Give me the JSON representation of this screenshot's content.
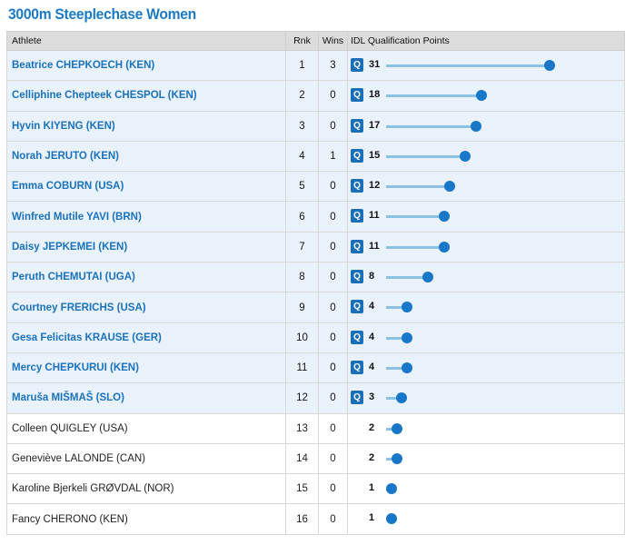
{
  "page": {
    "title": "3000m Steeplechase Women"
  },
  "table": {
    "headers": {
      "athlete": "Athlete",
      "rank": "Rnk",
      "wins": "Wins",
      "points": "IDL Qualification Points"
    },
    "badge_label": "Q",
    "max_points": 31,
    "colors": {
      "accent": "#1a7bc4",
      "qualified_row": "#e9f1fb",
      "badge": "#1a6fb8",
      "bar": "#8cc1e6",
      "dot": "#1877c9"
    },
    "rows": [
      {
        "athlete": "Beatrice CHEPKOECH (KEN)",
        "rank": "1",
        "wins": "3",
        "points": 31,
        "points_label": "31",
        "qualified": true
      },
      {
        "athlete": "Celliphine Chepteek CHESPOL (KEN)",
        "rank": "2",
        "wins": "0",
        "points": 18,
        "points_label": "18",
        "qualified": true
      },
      {
        "athlete": "Hyvin KIYENG (KEN)",
        "rank": "3",
        "wins": "0",
        "points": 17,
        "points_label": "17",
        "qualified": true
      },
      {
        "athlete": "Norah JERUTO (KEN)",
        "rank": "4",
        "wins": "1",
        "points": 15,
        "points_label": "15",
        "qualified": true
      },
      {
        "athlete": "Emma COBURN (USA)",
        "rank": "5",
        "wins": "0",
        "points": 12,
        "points_label": "12",
        "qualified": true
      },
      {
        "athlete": "Winfred Mutile YAVI (BRN)",
        "rank": "6",
        "wins": "0",
        "points": 11,
        "points_label": "11",
        "qualified": true
      },
      {
        "athlete": "Daisy JEPKEMEI (KEN)",
        "rank": "7",
        "wins": "0",
        "points": 11,
        "points_label": "11",
        "qualified": true
      },
      {
        "athlete": "Peruth CHEMUTAI (UGA)",
        "rank": "8",
        "wins": "0",
        "points": 8,
        "points_label": "8",
        "qualified": true
      },
      {
        "athlete": "Courtney FRERICHS (USA)",
        "rank": "9",
        "wins": "0",
        "points": 4,
        "points_label": "4",
        "qualified": true
      },
      {
        "athlete": "Gesa Felicitas KRAUSE (GER)",
        "rank": "10",
        "wins": "0",
        "points": 4,
        "points_label": "4",
        "qualified": true
      },
      {
        "athlete": "Mercy CHEPKURUI (KEN)",
        "rank": "11",
        "wins": "0",
        "points": 4,
        "points_label": "4",
        "qualified": true
      },
      {
        "athlete": "Maruša MIŠMAŠ (SLO)",
        "rank": "12",
        "wins": "0",
        "points": 3,
        "points_label": "3",
        "qualified": true
      },
      {
        "athlete": "Colleen QUIGLEY (USA)",
        "rank": "13",
        "wins": "0",
        "points": 2,
        "points_label": "2",
        "qualified": false
      },
      {
        "athlete": "Geneviève LALONDE (CAN)",
        "rank": "14",
        "wins": "0",
        "points": 2,
        "points_label": "2",
        "qualified": false
      },
      {
        "athlete": "Karoline Bjerkeli GRØVDAL (NOR)",
        "rank": "15",
        "wins": "0",
        "points": 1,
        "points_label": "1",
        "qualified": false
      },
      {
        "athlete": "Fancy CHERONO (KEN)",
        "rank": "16",
        "wins": "0",
        "points": 1,
        "points_label": "1",
        "qualified": false
      }
    ]
  }
}
